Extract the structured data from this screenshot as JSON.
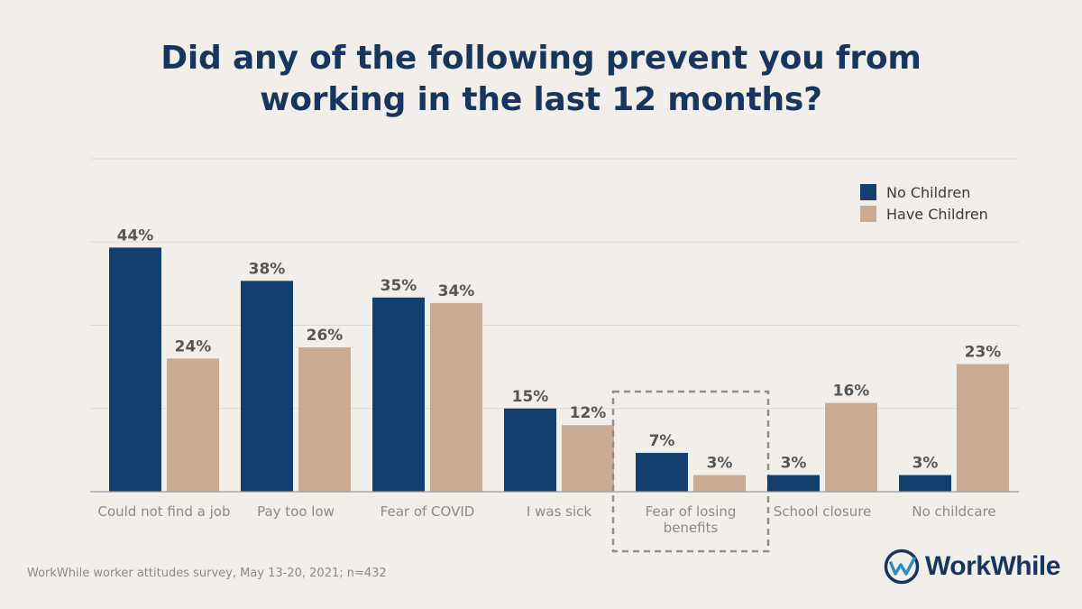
{
  "chart_data": {
    "type": "bar",
    "title_lines": [
      "Did any of the following prevent you from",
      "working in the last 12 months?"
    ],
    "categories": [
      [
        "Could not find a job"
      ],
      [
        "Pay too low"
      ],
      [
        "Fear of COVID"
      ],
      [
        "I was sick"
      ],
      [
        "Fear of losing",
        "benefits"
      ],
      [
        "School closure"
      ],
      [
        "No childcare"
      ]
    ],
    "series": [
      {
        "name": "No Children",
        "color": "#133f6e",
        "values": [
          44,
          38,
          35,
          15,
          7,
          3,
          3
        ]
      },
      {
        "name": "Have Children",
        "color": "#c9aa92",
        "values": [
          24,
          26,
          34,
          12,
          3,
          16,
          23
        ]
      }
    ],
    "value_suffix": "%",
    "ylim": [
      0,
      60
    ],
    "gridlines": [
      0,
      15,
      30,
      45,
      60
    ],
    "highlighted_category": "Fear of losing benefits",
    "legend_position": "top-right"
  },
  "footnote": "WorkWhile worker attitudes survey, May 13-20, 2021; n=432",
  "logo": {
    "text": "WorkWhile"
  }
}
